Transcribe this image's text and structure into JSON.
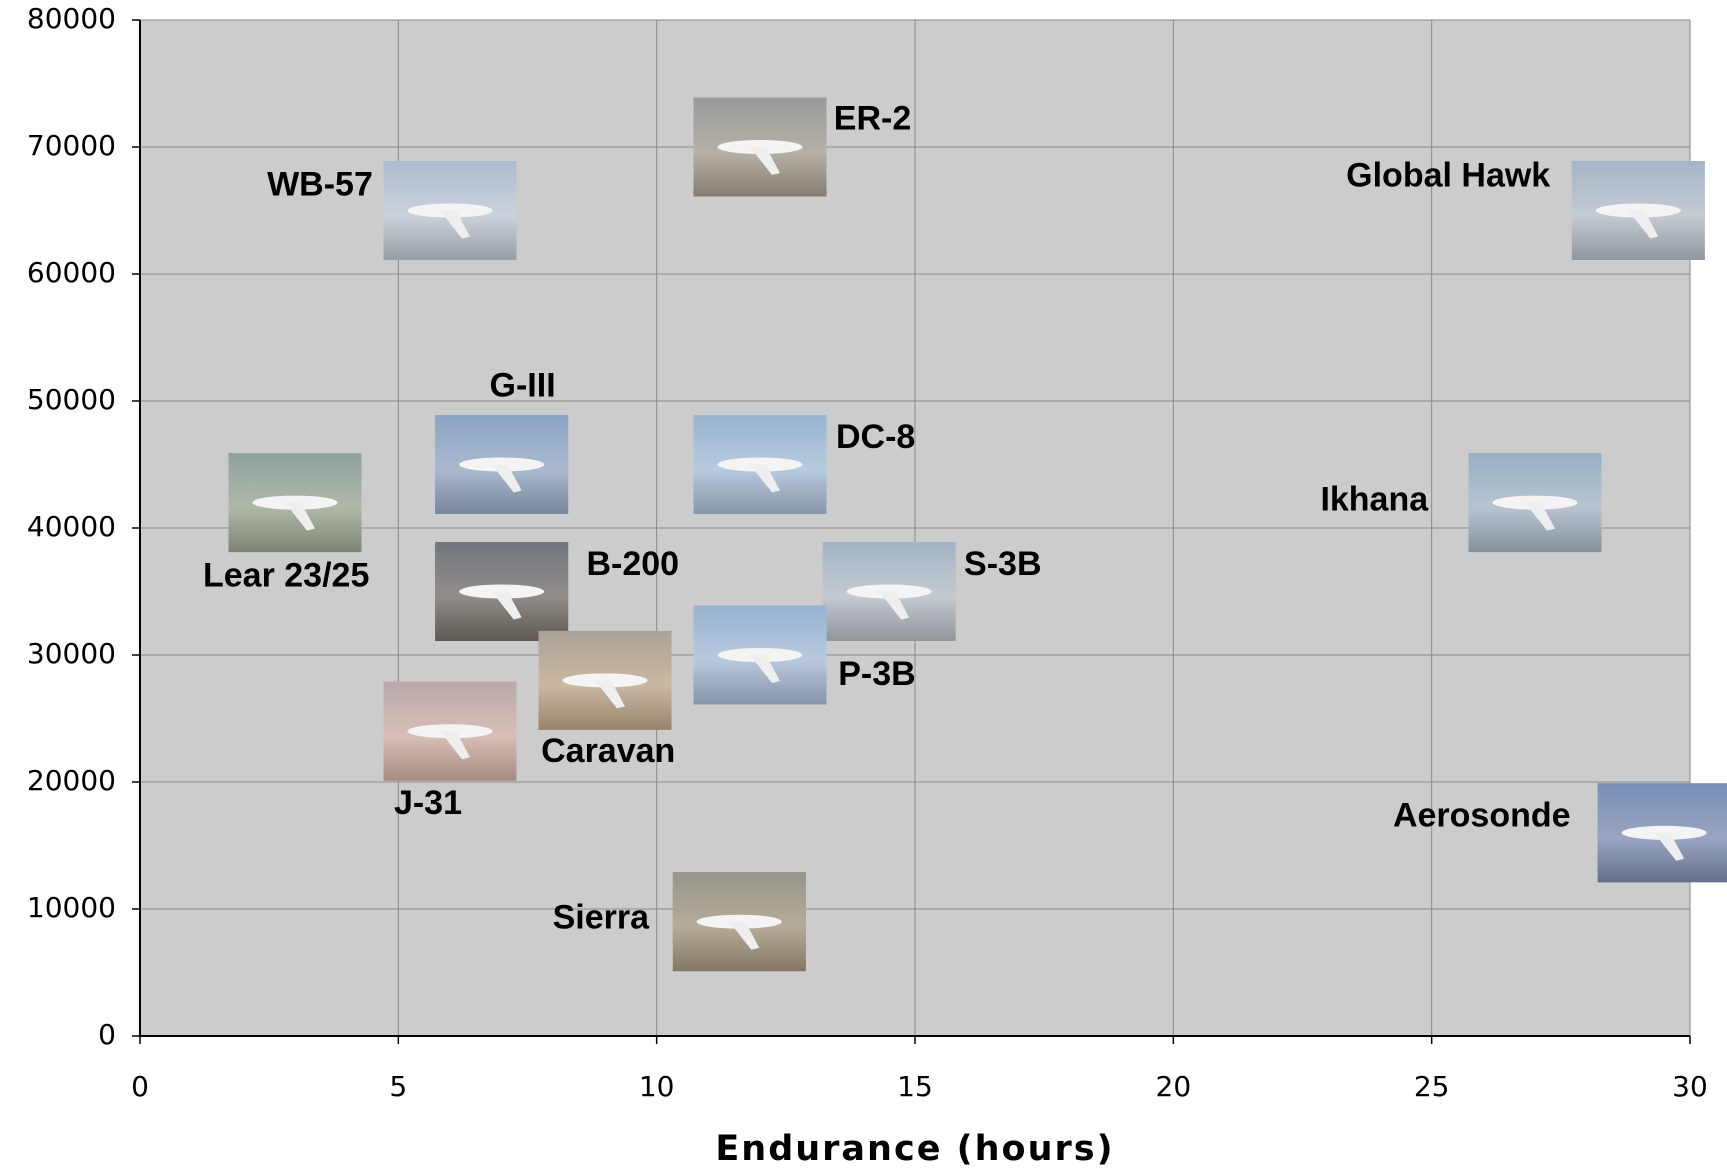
{
  "chart_data": {
    "type": "scatter",
    "x_label": "Endurance (hours)",
    "labels": [
      "ER-2",
      "WB-57",
      "Global Hawk",
      "G-III",
      "Lear 23/25",
      "DC-8",
      "Ikhana",
      "B-200",
      "S-3B",
      "P-3B",
      "Caravan",
      "J-31",
      "Aerosonde",
      "Sierra"
    ],
    "x": [
      12,
      6,
      29,
      7,
      3,
      12,
      27,
      7,
      14.5,
      12,
      9,
      6,
      29.5,
      11.6
    ],
    "values": [
      70000,
      65000,
      65000,
      45000,
      42000,
      45000,
      42000,
      35000,
      35000,
      30000,
      28000,
      24000,
      16000,
      9000
    ],
    "xlim": [
      0,
      30
    ],
    "xticks": [
      0,
      5,
      10,
      15,
      20,
      25,
      30
    ],
    "ylim": [
      0,
      80000
    ],
    "yticks": [
      0,
      10000,
      20000,
      30000,
      40000,
      50000,
      60000,
      70000,
      80000
    ],
    "grid": true
  }
}
